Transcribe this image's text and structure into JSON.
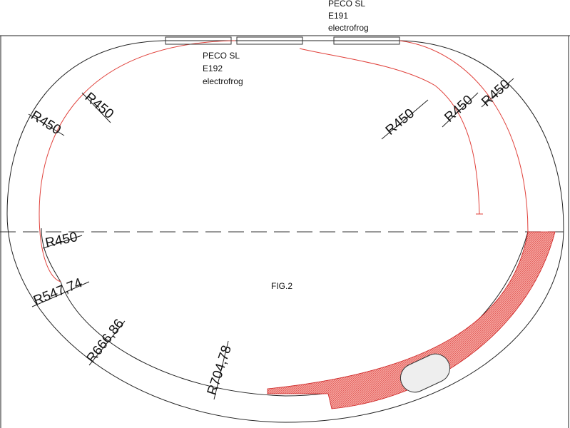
{
  "figure": {
    "title": "FIG.2"
  },
  "turnouts": [
    {
      "lines": [
        "PECO   SL",
        "E191",
        "electrofrog"
      ]
    },
    {
      "lines": [
        "PECO   SL",
        "E192",
        "electrofrog"
      ]
    }
  ],
  "radius_labels": [
    "R450",
    "R450",
    "R450",
    "R450",
    "R450",
    "R450",
    "R547,74",
    "R666,86",
    "R704,78"
  ]
}
